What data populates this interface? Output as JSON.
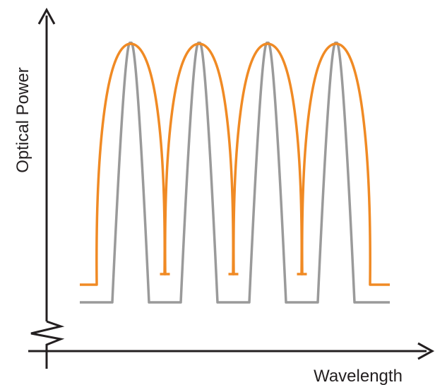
{
  "axes": {
    "y_label": "Optical Power",
    "x_label": "Wavelength"
  },
  "diagram": {
    "peak_count": 4,
    "colors": {
      "axis": "#231f20",
      "wide_spectrum": "#f08a24",
      "narrow_spectrum": "#9a9a9a"
    }
  }
}
